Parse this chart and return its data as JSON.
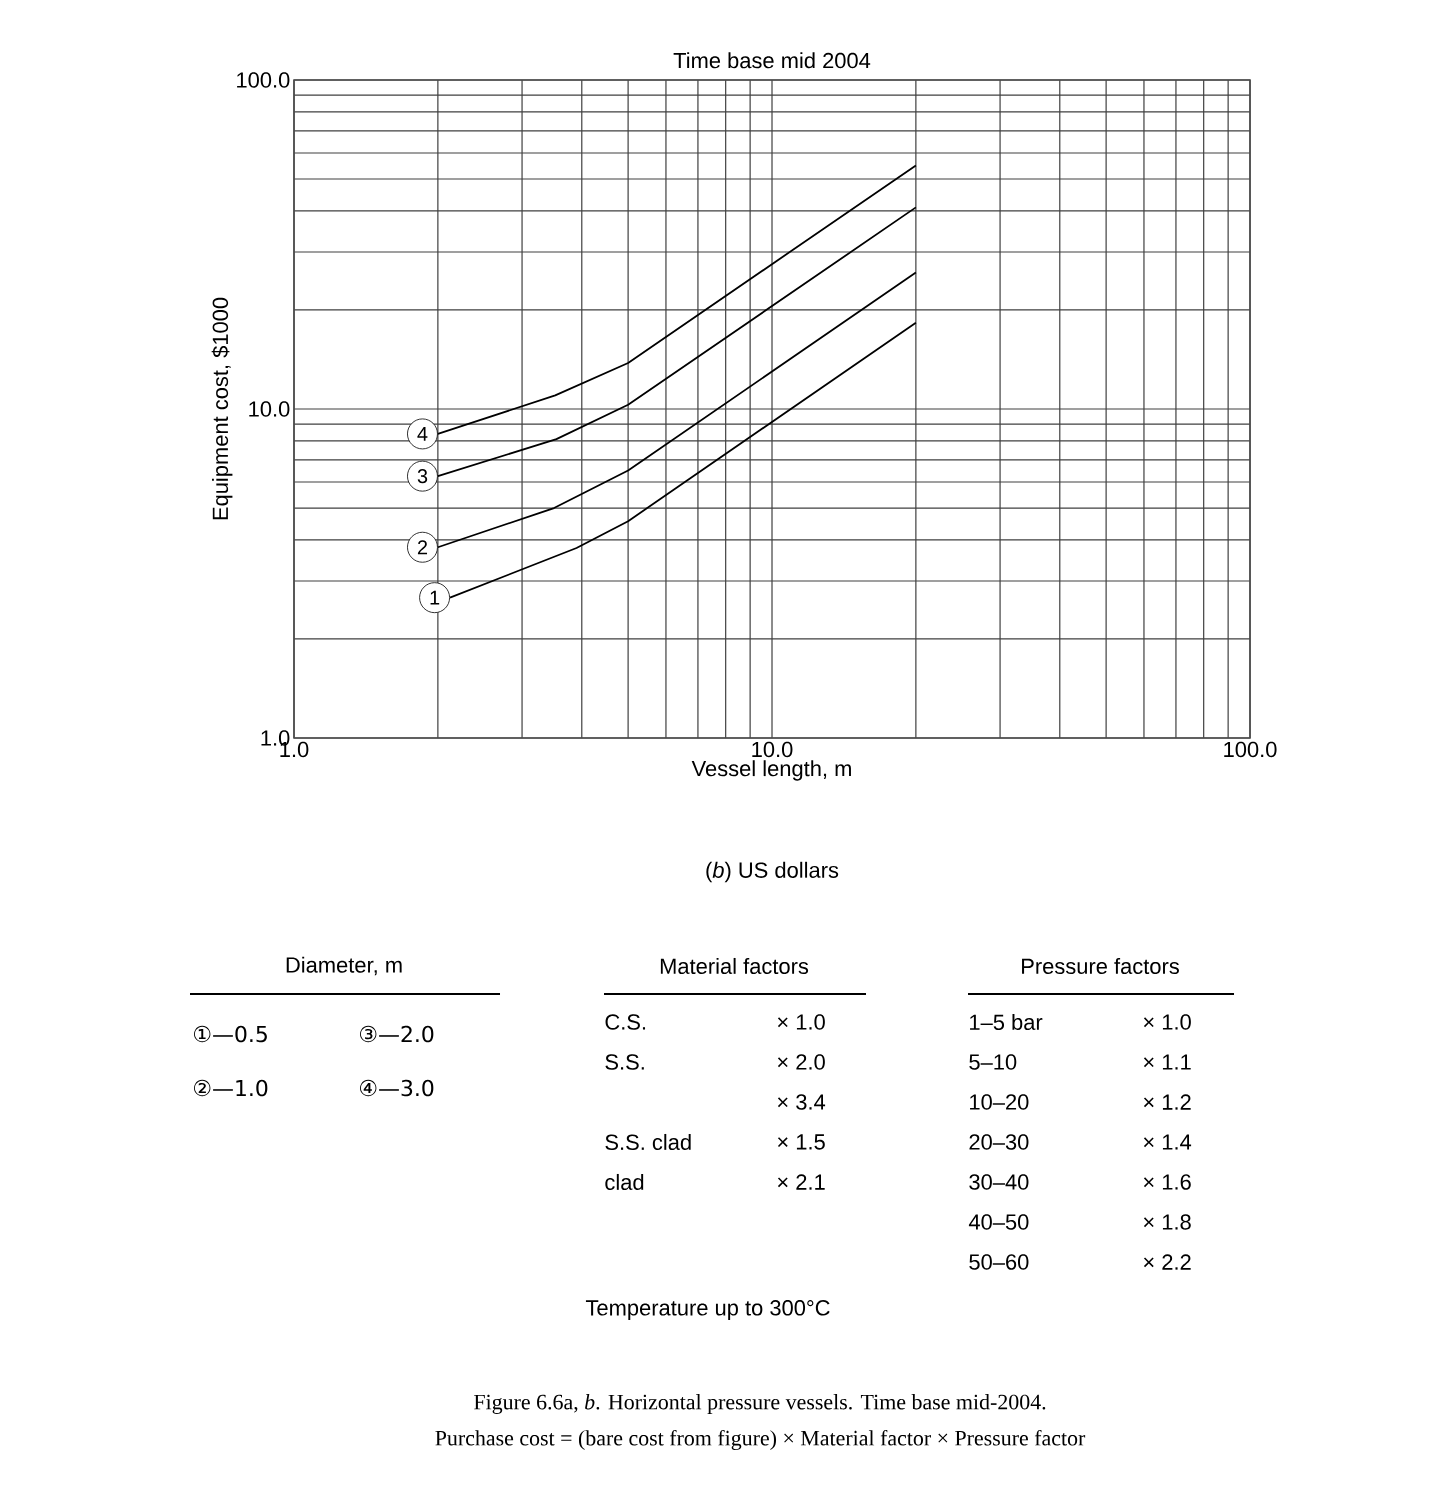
{
  "chart_data": {
    "type": "line",
    "title": "Time base mid 2004",
    "xlabel": "Vessel length, m",
    "ylabel": "Equipment cost, $1000",
    "log": "xy",
    "grid": true,
    "marker": "none",
    "line_style": "solid",
    "xlim": [
      1,
      100
    ],
    "ylim": [
      1,
      100
    ],
    "xticks": [
      {
        "value": 1,
        "label": "1.0"
      },
      {
        "value": 10,
        "label": "10.0"
      },
      {
        "value": 100,
        "label": "100.0"
      }
    ],
    "yticks": [
      {
        "value": 1,
        "label": "1.0"
      },
      {
        "value": 10,
        "label": "10.0"
      },
      {
        "value": 100,
        "label": "100.0"
      }
    ],
    "series": [
      {
        "name": "1",
        "color": "#000000",
        "x": [
          2.12,
          3.9,
          5,
          20
        ],
        "values": [
          2.67,
          3.78,
          4.56,
          18.3
        ]
      },
      {
        "name": "2",
        "color": "#000000",
        "x": [
          2,
          3.5,
          5,
          20
        ],
        "values": [
          3.8,
          5.0,
          6.5,
          26
        ]
      },
      {
        "name": "3",
        "color": "#000000",
        "x": [
          2,
          3.54,
          5,
          20
        ],
        "values": [
          6.25,
          8.1,
          10.3,
          41
        ]
      },
      {
        "name": "4",
        "color": "#000000",
        "x": [
          2,
          3.52,
          5,
          20
        ],
        "values": [
          8.4,
          11.0,
          13.8,
          55
        ]
      }
    ],
    "annotations": [
      "(*b*) US dollars",
      "Diameter, m",
      "①—0.5",
      "③—2.0",
      "②—1.0",
      "④—3.0",
      "Material factors",
      "C.S.",
      "× 1.0",
      "S.S.",
      "× 2.0",
      "× 3.4",
      "S.S. clad",
      "× 1.5",
      "clad",
      "× 2.1",
      "Pressure factors",
      "1–5 bar",
      "× 1.0",
      "5–10",
      "× 1.1",
      "10–20",
      "× 1.2",
      "20–30",
      "× 1.4",
      "30–40",
      "× 1.6",
      "40–50",
      "× 1.8",
      "50–60",
      "× 2.2",
      "Temperature up to 300°C",
      "Figure 6.6a, *b*.   Horizontal pressure vessels. Time base mid-2004.",
      "Purchase cost = (bare cost from figure) × Material factor × Pressure factor"
    ]
  }
}
